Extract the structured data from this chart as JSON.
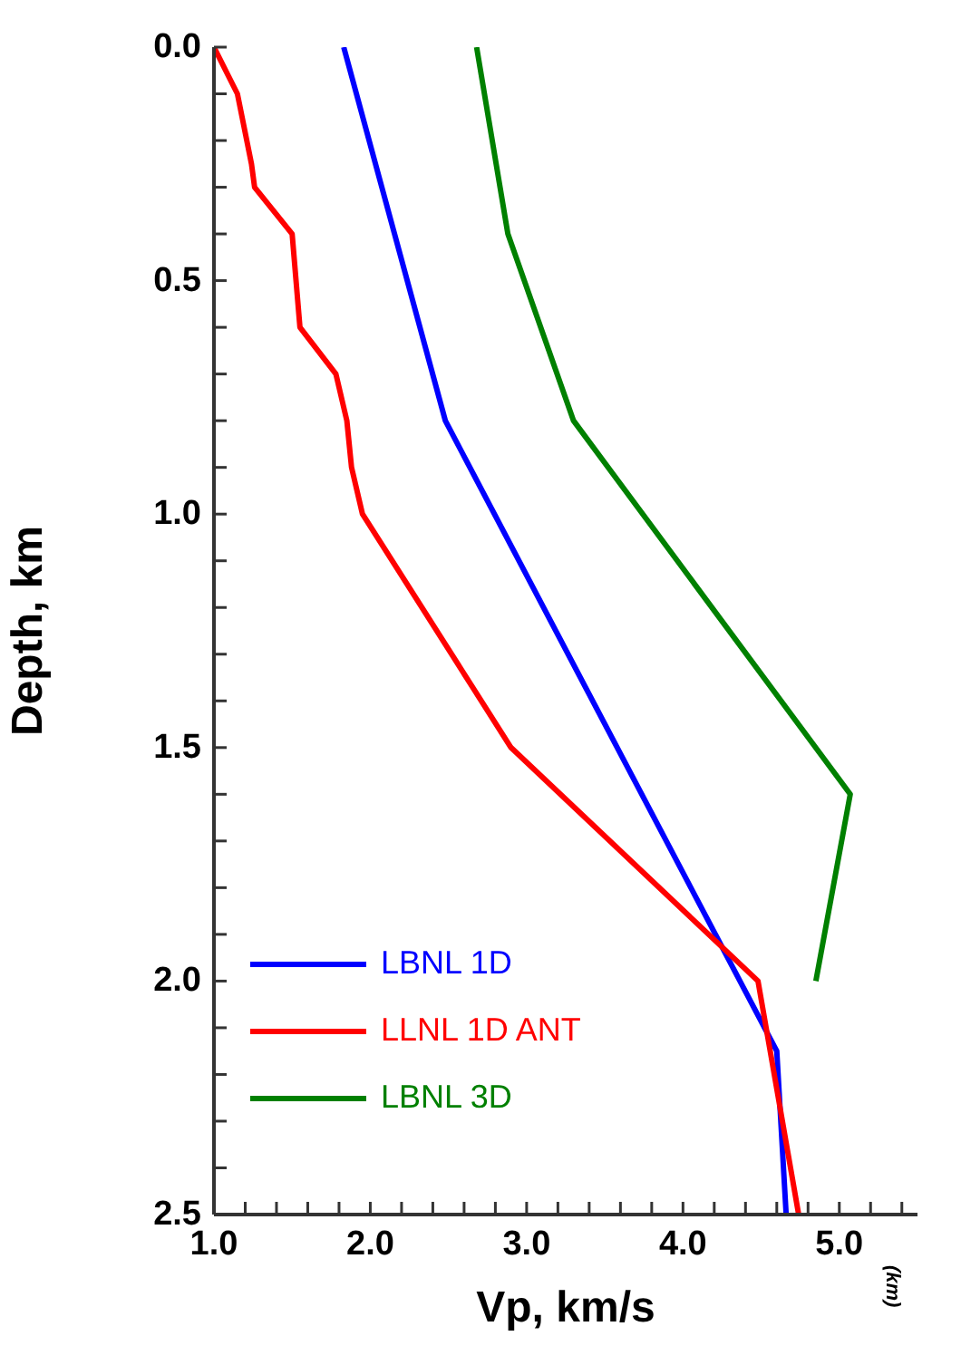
{
  "chart_data": {
    "type": "line",
    "xlabel": "Vp, km/s",
    "ylabel": "Depth, km",
    "annotations": [
      "(km)"
    ],
    "legend": "bottom left",
    "xlim": [
      1.0,
      5.5
    ],
    "ylim": [
      2.5,
      0.0
    ],
    "xticks": [
      {
        "value": 1,
        "label": "1.0"
      },
      {
        "value": 1.2,
        "label": null
      },
      {
        "value": 1.4,
        "label": null
      },
      {
        "value": 1.6,
        "label": null
      },
      {
        "value": 1.8,
        "label": null
      },
      {
        "value": 2,
        "label": "2.0"
      },
      {
        "value": 2.2,
        "label": null
      },
      {
        "value": 2.4,
        "label": null
      },
      {
        "value": 2.6,
        "label": null
      },
      {
        "value": 2.8,
        "label": null
      },
      {
        "value": 3,
        "label": "3.0"
      },
      {
        "value": 3.2,
        "label": null
      },
      {
        "value": 3.4,
        "label": null
      },
      {
        "value": 3.6,
        "label": null
      },
      {
        "value": 3.8,
        "label": null
      },
      {
        "value": 4,
        "label": "4.0"
      },
      {
        "value": 4.2,
        "label": null
      },
      {
        "value": 4.4,
        "label": null
      },
      {
        "value": 4.6,
        "label": null
      },
      {
        "value": 4.8,
        "label": null
      },
      {
        "value": 5,
        "label": "5.0"
      },
      {
        "value": 5.2,
        "label": null
      },
      {
        "value": 5.4,
        "label": null
      }
    ],
    "yticks": [
      {
        "value": 0,
        "label": "0.0"
      },
      {
        "value": 0.1,
        "label": null
      },
      {
        "value": 0.2,
        "label": null
      },
      {
        "value": 0.3,
        "label": null
      },
      {
        "value": 0.4,
        "label": null
      },
      {
        "value": 0.5,
        "label": "0.5"
      },
      {
        "value": 0.6,
        "label": null
      },
      {
        "value": 0.7,
        "label": null
      },
      {
        "value": 0.8,
        "label": null
      },
      {
        "value": 0.9,
        "label": null
      },
      {
        "value": 1,
        "label": "1.0"
      },
      {
        "value": 1.1,
        "label": null
      },
      {
        "value": 1.2,
        "label": null
      },
      {
        "value": 1.3,
        "label": null
      },
      {
        "value": 1.4,
        "label": null
      },
      {
        "value": 1.5,
        "label": "1.5"
      },
      {
        "value": 1.6,
        "label": null
      },
      {
        "value": 1.7,
        "label": null
      },
      {
        "value": 1.8,
        "label": null
      },
      {
        "value": 1.9,
        "label": null
      },
      {
        "value": 2,
        "label": "2.0"
      },
      {
        "value": 2.1,
        "label": null
      },
      {
        "value": 2.2,
        "label": null
      },
      {
        "value": 2.3,
        "label": null
      },
      {
        "value": 2.4,
        "label": null
      },
      {
        "value": 2.5,
        "label": "2.5"
      }
    ],
    "series": [
      {
        "name": "LBNL 1D",
        "color": "#0000ff",
        "x": [
          1.83,
          2.48,
          4.6,
          4.66
        ],
        "values": [
          0,
          0.8,
          2.15,
          2.5
        ]
      },
      {
        "name": "LLNL 1D ANT",
        "color": "#ff0000",
        "x": [
          1.0,
          1.15,
          1.24,
          1.26,
          1.5,
          1.55,
          1.78,
          1.85,
          1.88,
          1.95,
          2.9,
          4.48,
          4.74
        ],
        "values": [
          0,
          0.1,
          0.25,
          0.3,
          0.4,
          0.6,
          0.7,
          0.8,
          0.9,
          1.0,
          1.5,
          2.0,
          2.5
        ]
      },
      {
        "name": "LBNL 3D",
        "color": "#008000",
        "x": [
          2.68,
          2.88,
          3.3,
          5.07,
          4.85
        ],
        "values": [
          0,
          0.4,
          0.8,
          1.6,
          2.0
        ]
      }
    ]
  }
}
